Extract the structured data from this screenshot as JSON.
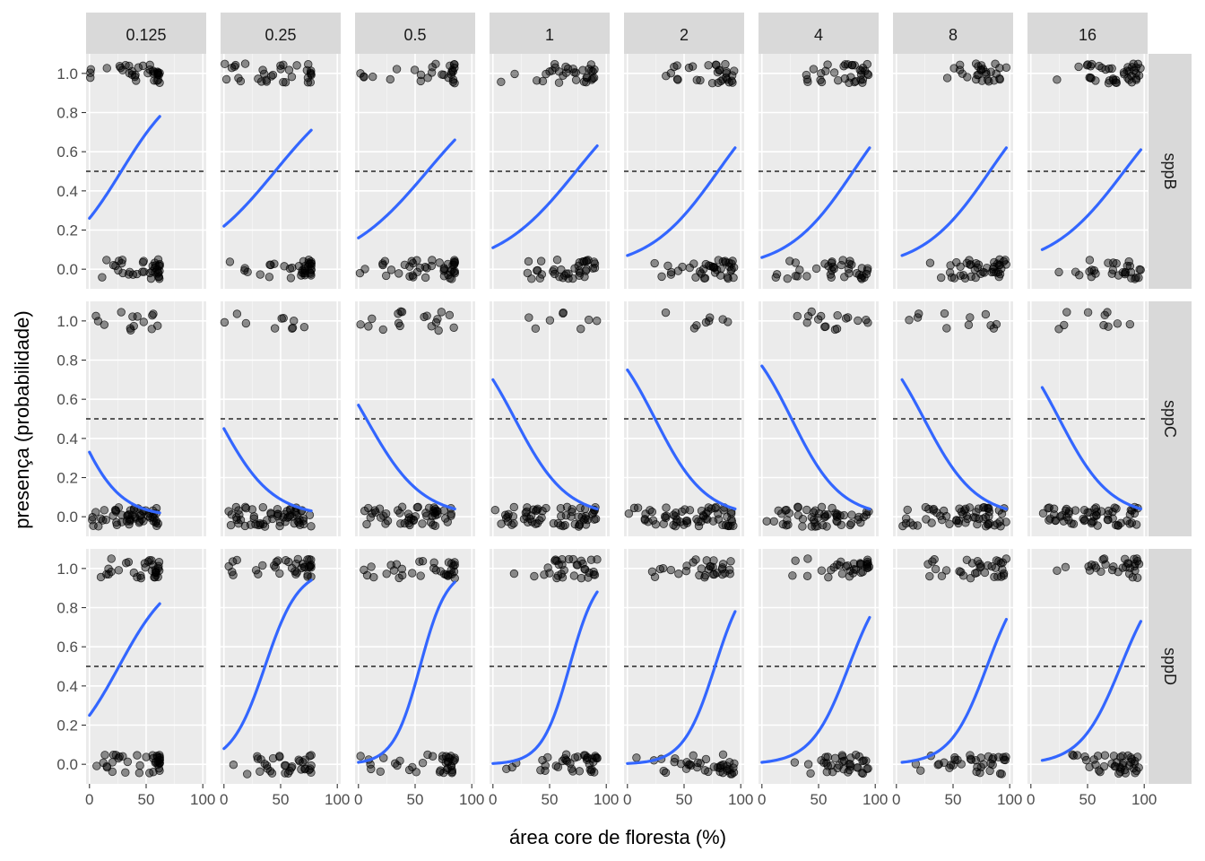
{
  "chart_data": {
    "type": "scatter",
    "layout": "facet_grid",
    "xlabel": "área core de floresta (%)",
    "ylabel": "presença (probabilidade)",
    "column_facets": [
      "0.125",
      "0.25",
      "0.5",
      "1",
      "2",
      "4",
      "8",
      "16"
    ],
    "row_facets": [
      "sppB",
      "sppC",
      "sppD"
    ],
    "x_ticks": [
      0,
      50,
      100
    ],
    "x_tick_labels": [
      "0",
      "50",
      "100"
    ],
    "xlim": [
      -3,
      103
    ],
    "y_ticks": [
      0.0,
      0.2,
      0.4,
      0.6,
      0.8,
      1.0
    ],
    "y_tick_labels": [
      "0.0",
      "0.2",
      "0.4",
      "0.6",
      "0.8",
      "1.0"
    ],
    "ylim": [
      -0.1,
      1.1
    ],
    "reference_line": 0.5,
    "grid": true,
    "colors": {
      "curve": "#3366FF",
      "points": "#000000",
      "panel_bg": "#EBEBEB",
      "strip_bg": "#D9D9D9",
      "reference_line": "#000000"
    },
    "fitted_curves": {
      "sppB": [
        {
          "x": [
            0,
            62
          ],
          "y": [
            0.26,
            0.78
          ]
        },
        {
          "x": [
            0,
            77
          ],
          "y": [
            0.22,
            0.71
          ]
        },
        {
          "x": [
            0,
            85
          ],
          "y": [
            0.16,
            0.66
          ]
        },
        {
          "x": [
            0,
            92
          ],
          "y": [
            0.11,
            0.63
          ]
        },
        {
          "x": [
            0,
            95
          ],
          "y": [
            0.07,
            0.62
          ]
        },
        {
          "x": [
            0,
            95
          ],
          "y": [
            0.06,
            0.62
          ]
        },
        {
          "x": [
            5,
            97
          ],
          "y": [
            0.07,
            0.62
          ]
        },
        {
          "x": [
            10,
            97
          ],
          "y": [
            0.1,
            0.61
          ]
        }
      ],
      "sppC": [
        {
          "x": [
            0,
            62
          ],
          "y": [
            0.33,
            0.02
          ]
        },
        {
          "x": [
            0,
            77
          ],
          "y": [
            0.45,
            0.03
          ]
        },
        {
          "x": [
            0,
            85
          ],
          "y": [
            0.57,
            0.04
          ]
        },
        {
          "x": [
            0,
            92
          ],
          "y": [
            0.7,
            0.04
          ]
        },
        {
          "x": [
            0,
            95
          ],
          "y": [
            0.75,
            0.04
          ]
        },
        {
          "x": [
            0,
            95
          ],
          "y": [
            0.77,
            0.04
          ]
        },
        {
          "x": [
            5,
            97
          ],
          "y": [
            0.7,
            0.04
          ]
        },
        {
          "x": [
            10,
            97
          ],
          "y": [
            0.66,
            0.04
          ]
        }
      ],
      "sppD": [
        {
          "x": [
            0,
            62
          ],
          "y": [
            0.25,
            0.82
          ]
        },
        {
          "x": [
            0,
            77
          ],
          "y": [
            0.08,
            0.94
          ]
        },
        {
          "x": [
            0,
            85
          ],
          "y": [
            0.01,
            0.93
          ]
        },
        {
          "x": [
            0,
            92
          ],
          "y": [
            0.0,
            0.88
          ]
        },
        {
          "x": [
            0,
            95
          ],
          "y": [
            0.0,
            0.78
          ]
        },
        {
          "x": [
            0,
            95
          ],
          "y": [
            0.01,
            0.75
          ]
        },
        {
          "x": [
            5,
            97
          ],
          "y": [
            0.01,
            0.74
          ]
        },
        {
          "x": [
            10,
            97
          ],
          "y": [
            0.02,
            0.73
          ]
        }
      ]
    }
  }
}
